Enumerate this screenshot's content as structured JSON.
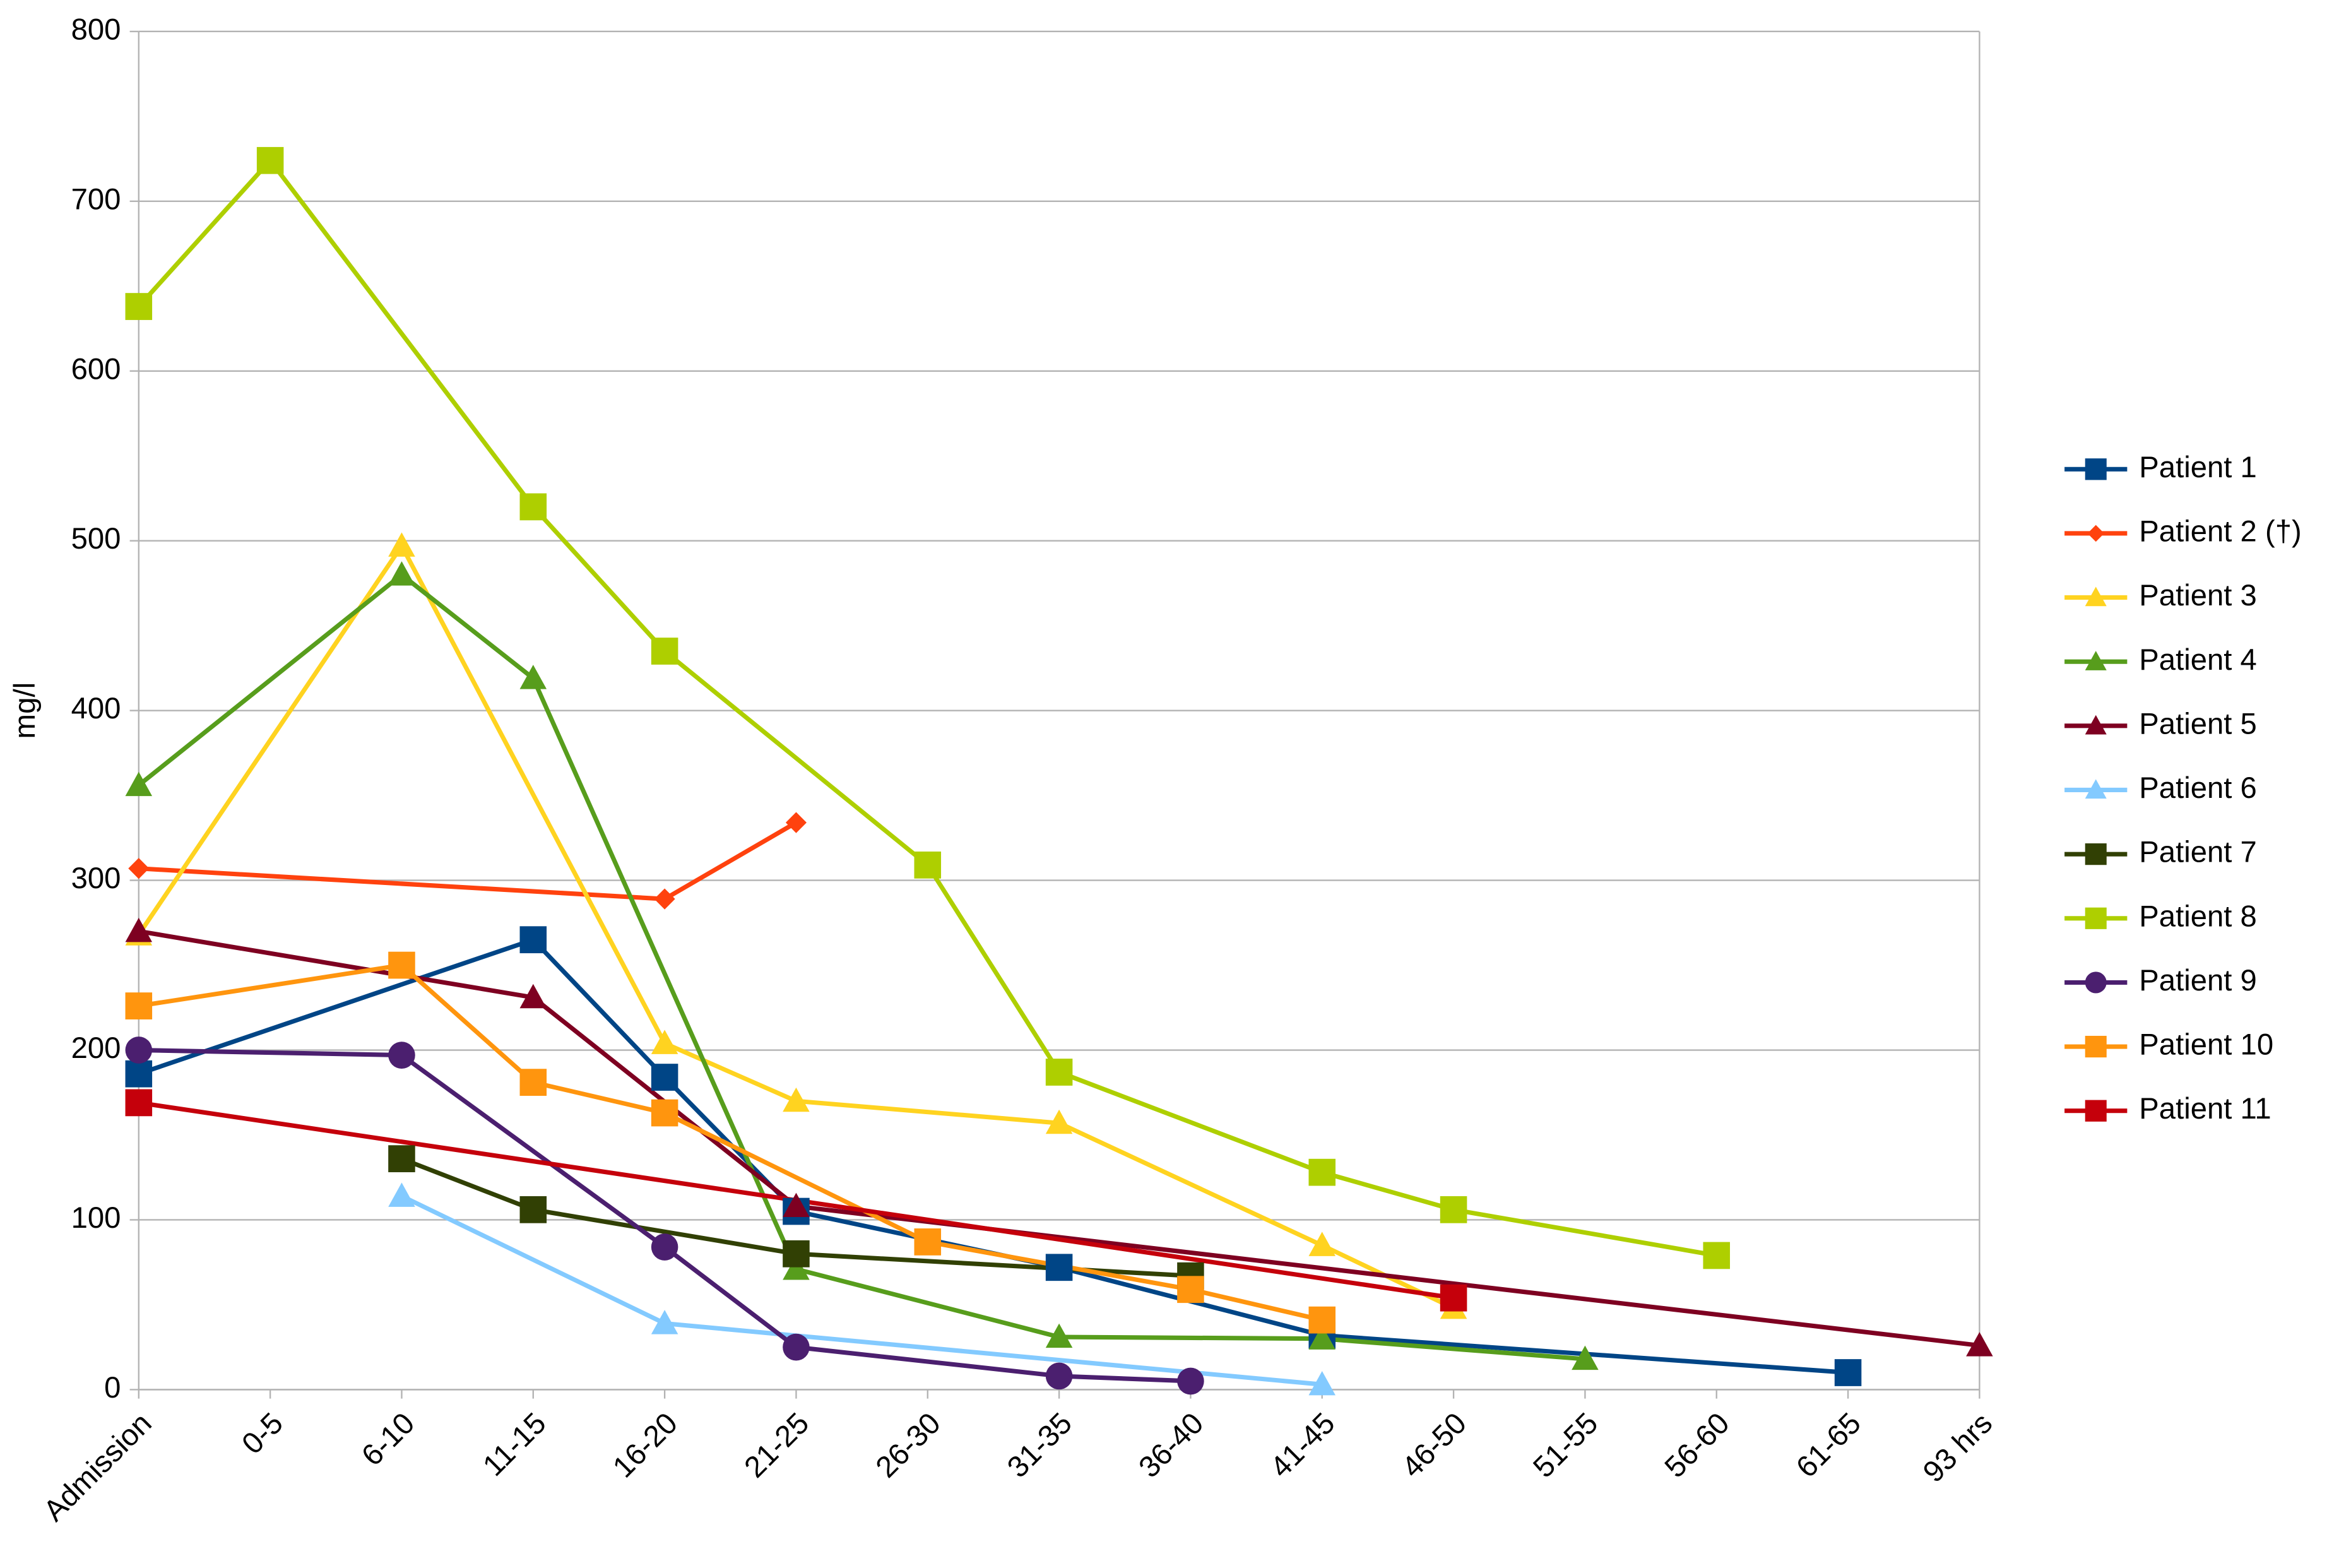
{
  "chart_data": {
    "type": "line",
    "y_label": "mg/l",
    "categories": [
      "Admission",
      "0-5",
      "6-10",
      "11-15",
      "16-20",
      "21-25",
      "26-30",
      "31-35",
      "36-40",
      "41-45",
      "46-50",
      "51-55",
      "56-60",
      "61-65",
      "93 hrs"
    ],
    "ylim": [
      0,
      800
    ],
    "yticks": [
      0,
      100,
      200,
      300,
      400,
      500,
      600,
      700,
      800
    ],
    "grid": true,
    "legend": "right",
    "series": [
      {
        "name": "Patient 1",
        "color": "#004586",
        "marker": "square",
        "values": [
          186,
          null,
          null,
          265,
          184,
          105,
          null,
          72,
          null,
          32,
          null,
          null,
          null,
          10,
          null
        ]
      },
      {
        "name": "Patient 2 (†)",
        "color": "#ff420e",
        "marker": "diamond",
        "values": [
          307,
          null,
          null,
          null,
          289,
          334,
          null,
          null,
          null,
          null,
          null,
          null,
          null,
          null,
          null
        ]
      },
      {
        "name": "Patient 3",
        "color": "#ffd320",
        "marker": "triangle",
        "values": [
          268,
          null,
          497,
          null,
          204,
          170,
          null,
          157,
          null,
          85,
          48,
          null,
          null,
          null,
          null
        ]
      },
      {
        "name": "Patient 4",
        "color": "#579d1c",
        "marker": "triangle",
        "values": [
          356,
          null,
          480,
          419,
          null,
          71,
          null,
          31,
          null,
          30,
          null,
          18,
          null,
          null,
          null
        ]
      },
      {
        "name": "Patient 5",
        "color": "#7e0021",
        "marker": "triangle",
        "values": [
          270,
          null,
          null,
          231,
          null,
          108,
          null,
          null,
          null,
          null,
          null,
          null,
          null,
          null,
          26
        ]
      },
      {
        "name": "Patient 6",
        "color": "#83caff",
        "marker": "triangle",
        "values": [
          null,
          null,
          114,
          null,
          39,
          null,
          null,
          null,
          null,
          3,
          null,
          null,
          null,
          null,
          null
        ]
      },
      {
        "name": "Patient 7",
        "color": "#314004",
        "marker": "square",
        "values": [
          null,
          null,
          136,
          106,
          null,
          80,
          null,
          null,
          67,
          null,
          null,
          null,
          null,
          null,
          null
        ]
      },
      {
        "name": "Patient 8",
        "color": "#aecf00",
        "marker": "square",
        "values": [
          638,
          724,
          null,
          520,
          435,
          null,
          309,
          187,
          null,
          128,
          106,
          null,
          79,
          null,
          null
        ]
      },
      {
        "name": "Patient 9",
        "color": "#4b1f6f",
        "marker": "circle",
        "values": [
          200,
          null,
          197,
          null,
          84,
          25,
          null,
          8,
          5,
          null,
          null,
          null,
          null,
          null,
          null
        ]
      },
      {
        "name": "Patient 10",
        "color": "#ff950e",
        "marker": "square",
        "values": [
          226,
          null,
          250,
          181,
          163,
          null,
          87,
          null,
          59,
          41,
          null,
          null,
          null,
          null,
          null
        ]
      },
      {
        "name": "Patient 11",
        "color": "#c5000b",
        "marker": "square",
        "values": [
          169,
          null,
          null,
          null,
          null,
          null,
          null,
          null,
          null,
          null,
          54,
          null,
          null,
          null,
          null
        ]
      }
    ]
  }
}
